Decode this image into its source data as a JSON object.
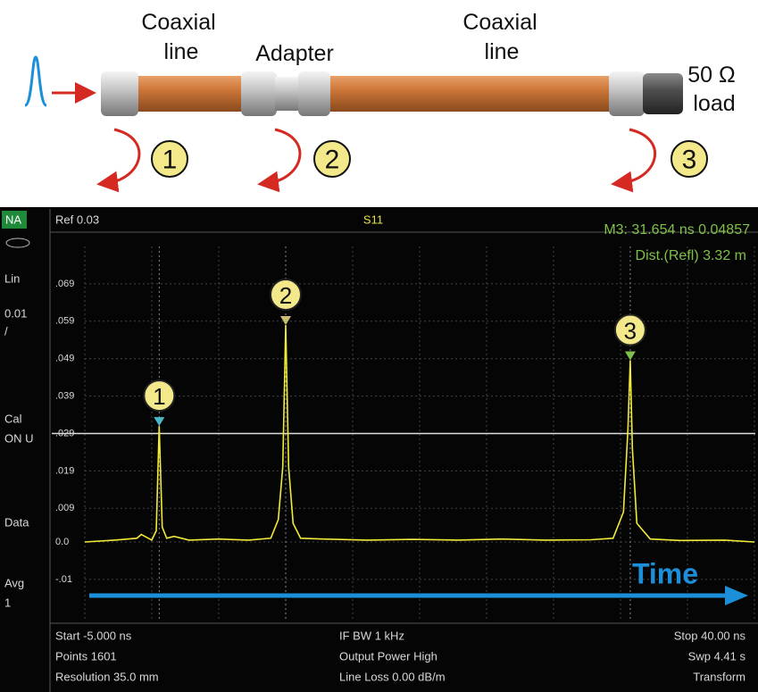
{
  "diagram": {
    "labels": [
      [
        "Coaxial",
        "line"
      ],
      [
        "Adapter"
      ],
      [
        "Coaxial",
        "line"
      ],
      [
        "50 Ω",
        "load"
      ]
    ],
    "reflections": [
      "1",
      "2",
      "3"
    ]
  },
  "instrument": {
    "mode": "NA",
    "sidebar": [
      "Lin",
      "0.01",
      "/",
      "Cal",
      "ON U",
      "Data",
      "Avg",
      "1"
    ],
    "header": {
      "ref": "Ref 0.03",
      "param": "S11",
      "marker": "M3:  31.654 ns 0.04857",
      "distance": "Dist.(Refl) 3.32  m"
    },
    "footer": [
      [
        "Start -5.000 ns",
        "Points 1601",
        "Resolution 35.0 mm"
      ],
      [
        "IF BW 1 kHz",
        "Output Power High",
        "Line Loss 0.00  dB/m"
      ],
      [
        "Stop 40.00 ns",
        "Swp 4.41 s",
        "Transform"
      ]
    ]
  },
  "chart_data": {
    "type": "line",
    "xlim": [
      -5,
      40
    ],
    "ylim": [
      -0.021,
      0.079
    ],
    "yticks": [
      {
        "value": 0.069,
        "label": ".069"
      },
      {
        "value": 0.059,
        "label": ".059"
      },
      {
        "value": 0.049,
        "label": ".049"
      },
      {
        "value": 0.039,
        "label": ".039"
      },
      {
        "value": 0.029,
        "label": ".029"
      },
      {
        "value": 0.019,
        "label": ".019"
      },
      {
        "value": 0.009,
        "label": ".009"
      },
      {
        "value": 0,
        "label": "0.0"
      },
      {
        "value": -0.01,
        "label": "-.01"
      }
    ],
    "grid": true,
    "ref_line": 0.029,
    "x": [
      -5,
      -3,
      -1.5,
      -1.2,
      -0.5,
      -0.2,
      0,
      0.2,
      0.5,
      1,
      2,
      4,
      6,
      7.5,
      8,
      8.3,
      8.5,
      8.7,
      9,
      9.5,
      11,
      14,
      17,
      20,
      23,
      26,
      29,
      30.5,
      31.2,
      31.5,
      31.654,
      31.8,
      32.1,
      33,
      35,
      38,
      40
    ],
    "series": [
      {
        "color": "#f2ea3a",
        "values": [
          0,
          0.0005,
          0.001,
          0.002,
          0.0005,
          0.003,
          0.031,
          0.004,
          0.001,
          0.0015,
          0.0005,
          0.0008,
          0.0005,
          0.001,
          0.006,
          0.02,
          0.058,
          0.02,
          0.005,
          0.001,
          0.0008,
          0.0005,
          0.0007,
          0.0005,
          0.0008,
          0.0005,
          0.0006,
          0.001,
          0.008,
          0.03,
          0.04857,
          0.025,
          0.005,
          0.0008,
          0.0004,
          0.0005,
          0
        ]
      }
    ],
    "markers": [
      {
        "label": "1",
        "x": 0,
        "y": 0.031
      },
      {
        "label": "2",
        "x": 8.5,
        "y": 0.058
      },
      {
        "label": "3",
        "x": 31.654,
        "y": 0.04857
      }
    ],
    "annotation": "Time"
  }
}
